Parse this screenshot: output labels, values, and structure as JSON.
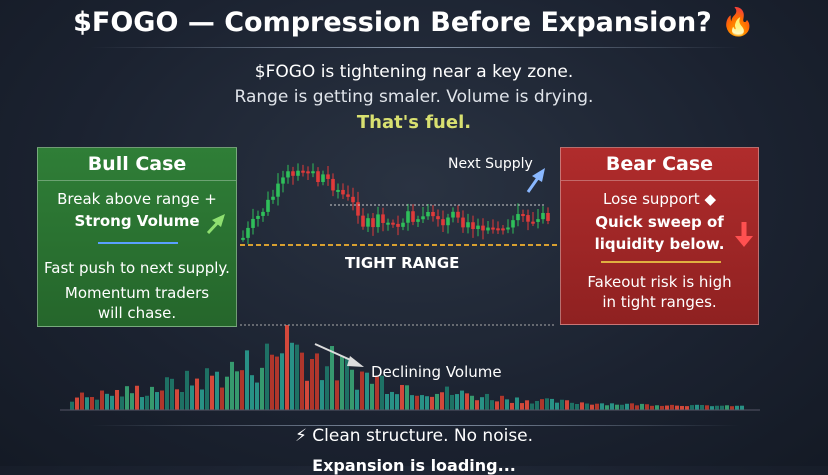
{
  "header": {
    "title": "$FOGO — Compression Before Expansion? 🔥",
    "lines": [
      "$FOGO is tightening near a key zone.",
      "Range is getting smaler. Volume is drying.",
      "That's fuel."
    ]
  },
  "bull": {
    "title": "Bull Case",
    "lines": [
      "Break above range +",
      "Strong Volume",
      "Fast push to next supply.",
      "Momentum traders",
      "will chase."
    ]
  },
  "bear": {
    "title": "Bear Case",
    "lines": [
      "Lose support ◆",
      "Quick sweep of",
      "liquidity below.",
      "Fakeout risk is high",
      "in tight ranges."
    ]
  },
  "chart": {
    "supply_label": "Next Supply",
    "range_label": "TIGHT RANGE",
    "volume_label": "Declining Volume"
  },
  "footer": {
    "lines": [
      "⚡ Clean structure. No noise.",
      "Expansion is loading..."
    ]
  }
}
